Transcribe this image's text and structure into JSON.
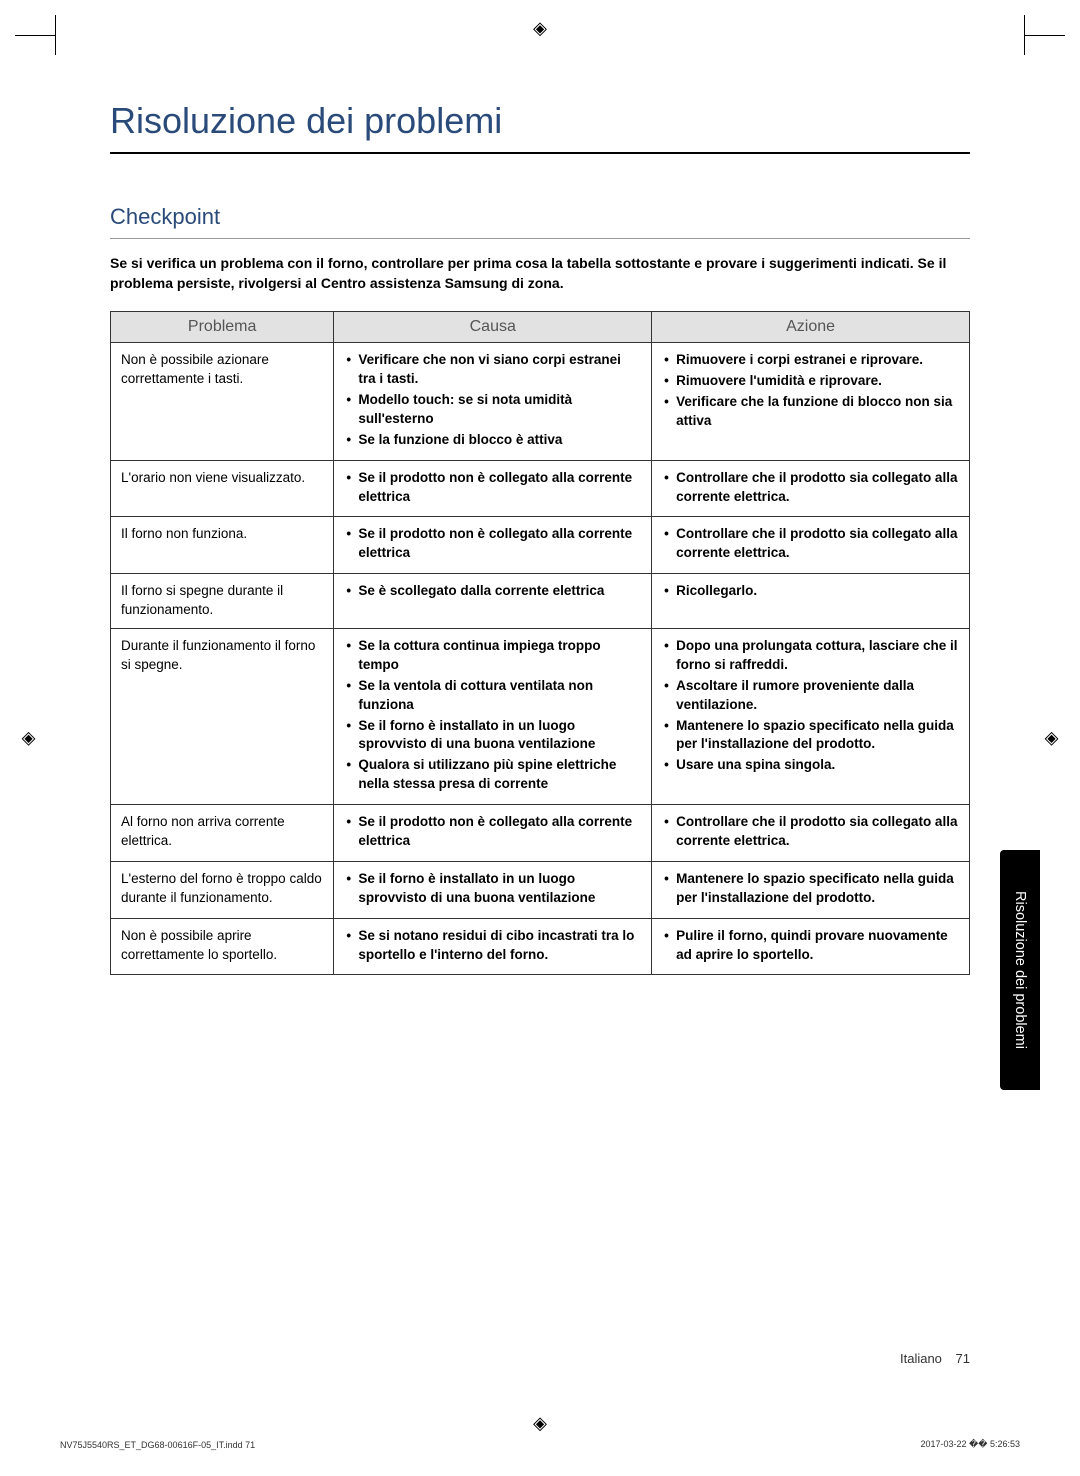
{
  "page": {
    "mainTitle": "Risoluzione dei problemi",
    "sectionTitle": "Checkpoint",
    "introText": "Se si verifica un problema con il forno, controllare per prima cosa la tabella sottostante e provare i suggerimenti indicati. Se il problema persiste, rivolgersi al Centro assistenza Samsung di zona.",
    "sideTab": "Risoluzione dei problemi",
    "footerLang": "Italiano",
    "footerPage": "71",
    "footerLeft": "NV75J5540RS_ET_DG68-00616F-05_IT.indd   71",
    "footerRight": "2017-03-22   �� 5:26:53"
  },
  "table": {
    "headers": {
      "problem": "Problema",
      "cause": "Causa",
      "action": "Azione"
    },
    "rows": [
      {
        "problem": "Non è possibile azionare correttamente i tasti.",
        "causes": [
          "Verificare che non vi siano corpi estranei tra i tasti.",
          "Modello touch: se si nota umidità sull'esterno",
          "Se la funzione di blocco è attiva"
        ],
        "actions": [
          "Rimuovere i corpi estranei e riprovare.",
          "Rimuovere l'umidità e riprovare.",
          "Verificare che la funzione di blocco non sia attiva"
        ]
      },
      {
        "problem": "L'orario non viene visualizzato.",
        "causes": [
          "Se il prodotto non è collegato alla corrente elettrica"
        ],
        "actions": [
          "Controllare che il prodotto sia collegato alla corrente elettrica."
        ]
      },
      {
        "problem": "Il forno non funziona.",
        "causes": [
          "Se il prodotto non è collegato alla corrente elettrica"
        ],
        "actions": [
          "Controllare che il prodotto sia collegato alla corrente elettrica."
        ]
      },
      {
        "problem": "Il forno si spegne durante il funzionamento.",
        "causes": [
          "Se è scollegato dalla corrente elettrica"
        ],
        "actions": [
          "Ricollegarlo."
        ]
      },
      {
        "problem": "Durante il funzionamento il forno si spegne.",
        "causes": [
          "Se la cottura continua impiega troppo tempo",
          "Se la ventola di cottura ventilata non funziona",
          "Se il forno è installato in un luogo sprovvisto di una buona ventilazione",
          "Qualora si utilizzano più spine elettriche nella stessa presa di corrente"
        ],
        "actions": [
          "Dopo una prolungata cottura, lasciare che il forno si raffreddi.",
          "Ascoltare il rumore proveniente dalla ventilazione.",
          "Mantenere lo spazio specificato nella guida per l'installazione del prodotto.",
          "Usare una spina singola."
        ]
      },
      {
        "problem": "Al forno non arriva corrente elettrica.",
        "causes": [
          "Se il prodotto non è collegato alla corrente elettrica"
        ],
        "actions": [
          "Controllare che il prodotto sia collegato alla corrente elettrica."
        ]
      },
      {
        "problem": "L'esterno del forno è troppo caldo durante il funzionamento.",
        "causes": [
          "Se il forno è installato in un luogo sprovvisto di una buona ventilazione"
        ],
        "actions": [
          "Mantenere lo spazio specificato nella guida per l'installazione del prodotto."
        ]
      },
      {
        "problem": "Non è possibile aprire correttamente lo sportello.",
        "causes": [
          "Se si notano residui di cibo incastrati tra lo sportello e l'interno del forno."
        ],
        "actions": [
          "Pulire il forno, quindi provare nuovamente ad aprire lo sportello."
        ]
      }
    ]
  }
}
